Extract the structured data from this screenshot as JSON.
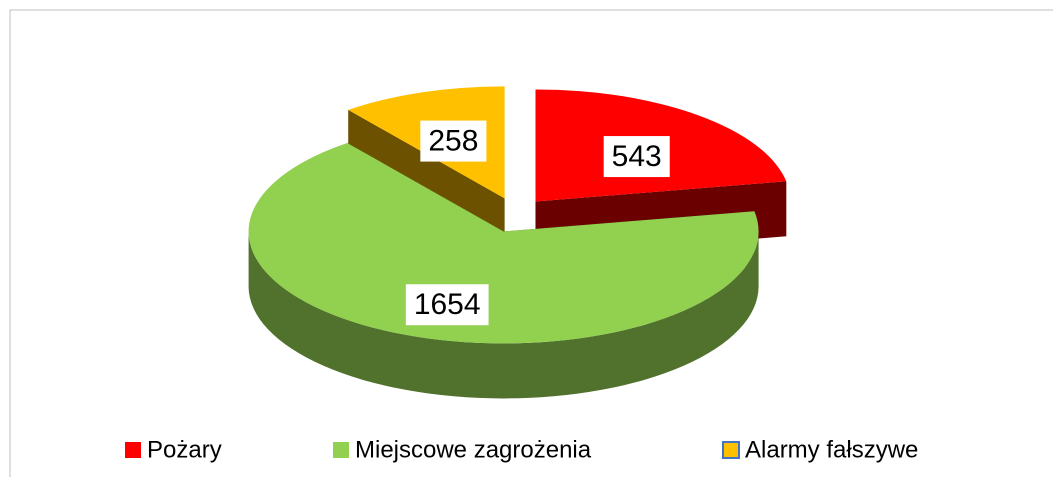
{
  "chart_data": {
    "type": "pie",
    "categories": [
      "Pożary",
      "Miejscowe zagrożenia",
      "Alarmy fałszywe"
    ],
    "values": [
      543,
      1654,
      258
    ],
    "colors": [
      "#ff0000",
      "#92d050",
      "#ffc000"
    ],
    "legend": "bottom"
  }
}
